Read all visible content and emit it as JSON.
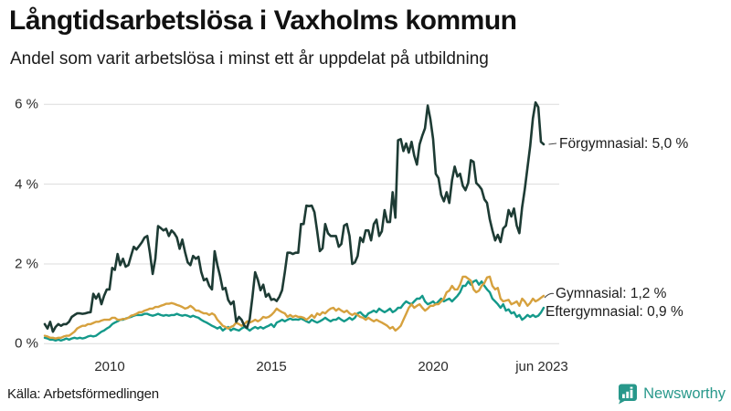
{
  "header": {
    "title": "Långtidsarbetslösa i Vaxholms kommun",
    "subtitle": "Andel som varit arbetslösa i minst ett år uppdelat på utbildning"
  },
  "footer": {
    "source": "Källa: Arbetsförmedlingen",
    "brand": "Newsworthy"
  },
  "colors": {
    "forgymnasial": "#1d3b34",
    "gymnasial": "#d6a13e",
    "eftergymnasial": "#14998a",
    "grid": "#dcdcdc",
    "brand_teal": "#28988b",
    "text": "#1c1c1c"
  },
  "chart_data": {
    "type": "line",
    "title": "Långtidsarbetslösa i Vaxholms kommun",
    "subtitle": "Andel som varit arbetslösa i minst ett år uppdelat på utbildning",
    "x_unit": "month",
    "x_start": "2008-01",
    "x_end": "2023-06",
    "ylim": [
      0,
      6
    ],
    "grid": "horizontal",
    "legend_position": "right-end-of-line",
    "y_ticks": [
      {
        "label": "6 %",
        "value": 6
      },
      {
        "label": "4 %",
        "value": 4
      },
      {
        "label": "2 %",
        "value": 2
      },
      {
        "label": "0 %",
        "value": 0
      }
    ],
    "x_ticks": [
      {
        "label": "2010",
        "month_index": 24
      },
      {
        "label": "2015",
        "month_index": 84
      },
      {
        "label": "2020",
        "month_index": 144
      },
      {
        "label": "jun 2023",
        "month_index": 185
      }
    ],
    "series": [
      {
        "name": "Förgymnasial",
        "label": "Förgymnasial: 5,0 %",
        "end_value": "5,0 %",
        "color": "#1d3b34",
        "values": [
          0.49,
          0.38,
          0.55,
          0.3,
          0.42,
          0.49,
          0.45,
          0.49,
          0.49,
          0.55,
          0.67,
          0.72,
          0.76,
          0.76,
          0.75,
          0.76,
          0.78,
          0.79,
          1.25,
          1.13,
          1.25,
          0.99,
          1.2,
          1.36,
          1.36,
          1.9,
          1.85,
          2.25,
          1.97,
          2.13,
          1.93,
          1.97,
          2.2,
          2.43,
          2.36,
          2.45,
          2.54,
          2.66,
          2.7,
          2.27,
          1.75,
          2.13,
          2.95,
          2.9,
          2.84,
          2.88,
          2.7,
          2.84,
          2.77,
          2.66,
          2.38,
          2.61,
          2.3,
          2.04,
          1.97,
          2.2,
          2.13,
          2.18,
          1.8,
          1.59,
          1.63,
          1.45,
          1.36,
          2.32,
          1.97,
          1.7,
          1.36,
          1.4,
          1.1,
          0.99,
          1.06,
          0.55,
          0.67,
          0.6,
          0.45,
          0.4,
          0.62,
          1.18,
          1.79,
          1.6,
          1.34,
          1.48,
          1.18,
          1.25,
          1.1,
          1.12,
          1.07,
          1.18,
          1.34,
          1.79,
          2.28,
          2.28,
          2.25,
          2.28,
          2.28,
          3.0,
          3.0,
          3.46,
          3.45,
          3.46,
          3.3,
          2.82,
          2.32,
          2.39,
          3.0,
          2.77,
          2.7,
          2.7,
          2.7,
          2.43,
          2.5,
          2.96,
          3.0,
          2.7,
          2.0,
          2.04,
          2.2,
          2.66,
          2.55,
          2.84,
          2.84,
          2.59,
          3.0,
          3.11,
          2.7,
          2.82,
          3.35,
          3.05,
          3.05,
          3.8,
          3.16,
          5.1,
          5.13,
          4.83,
          5.02,
          4.79,
          5.06,
          4.72,
          4.49,
          5.0,
          5.22,
          5.4,
          5.97,
          5.63,
          5.13,
          4.26,
          4.15,
          3.73,
          3.57,
          3.8,
          3.53,
          4.1,
          4.44,
          4.19,
          4.26,
          3.96,
          3.85,
          4.03,
          4.6,
          4.56,
          4.03,
          3.96,
          3.87,
          3.62,
          3.53,
          3.12,
          2.84,
          2.59,
          2.73,
          2.55,
          2.89,
          2.96,
          3.35,
          3.19,
          3.39,
          2.96,
          2.77,
          3.42,
          3.87,
          4.42,
          4.95,
          5.65,
          6.05,
          5.93,
          5.06,
          5.0
        ]
      },
      {
        "name": "Gymnasial",
        "label": "Gymnasial: 1,2 %",
        "end_value": "1,2 %",
        "color": "#d6a13e",
        "values": [
          0.2,
          0.18,
          0.15,
          0.15,
          0.13,
          0.15,
          0.15,
          0.18,
          0.2,
          0.2,
          0.25,
          0.3,
          0.38,
          0.42,
          0.45,
          0.45,
          0.49,
          0.49,
          0.52,
          0.55,
          0.55,
          0.58,
          0.6,
          0.6,
          0.6,
          0.65,
          0.65,
          0.6,
          0.6,
          0.62,
          0.62,
          0.65,
          0.7,
          0.72,
          0.75,
          0.79,
          0.79,
          0.83,
          0.85,
          0.88,
          0.88,
          0.92,
          0.92,
          0.95,
          0.97,
          1.0,
          1.0,
          1.02,
          1.0,
          0.97,
          0.95,
          0.92,
          0.88,
          0.9,
          0.95,
          0.9,
          0.83,
          0.83,
          0.79,
          0.76,
          0.76,
          0.72,
          0.76,
          0.72,
          0.6,
          0.53,
          0.45,
          0.42,
          0.38,
          0.42,
          0.45,
          0.53,
          0.49,
          0.45,
          0.49,
          0.56,
          0.53,
          0.56,
          0.6,
          0.56,
          0.6,
          0.67,
          0.65,
          0.67,
          0.72,
          0.79,
          0.88,
          0.83,
          0.79,
          0.76,
          0.67,
          0.72,
          0.67,
          0.7,
          0.67,
          0.67,
          0.65,
          0.6,
          0.65,
          0.72,
          0.65,
          0.76,
          0.72,
          0.79,
          0.76,
          0.83,
          0.88,
          0.9,
          0.83,
          0.88,
          0.83,
          0.79,
          0.83,
          0.76,
          0.72,
          0.76,
          0.72,
          0.67,
          0.65,
          0.6,
          0.65,
          0.6,
          0.56,
          0.6,
          0.56,
          0.53,
          0.49,
          0.45,
          0.38,
          0.42,
          0.33,
          0.38,
          0.45,
          0.6,
          0.75,
          0.9,
          0.99,
          0.9,
          0.95,
          0.99,
          0.9,
          0.83,
          0.88,
          0.95,
          0.95,
          0.99,
          0.99,
          1.06,
          1.13,
          1.29,
          1.33,
          1.45,
          1.36,
          1.36,
          1.48,
          1.68,
          1.68,
          1.63,
          1.58,
          1.36,
          1.29,
          1.33,
          1.45,
          1.52,
          1.66,
          1.68,
          1.45,
          1.36,
          1.4,
          1.13,
          1.06,
          1.08,
          1.1,
          0.99,
          1.02,
          1.06,
          0.95,
          1.13,
          1.06,
          0.95,
          1.02,
          1.13,
          1.06,
          1.1,
          1.15,
          1.2
        ]
      },
      {
        "name": "Eftergymnasial",
        "label": "Eftergymnasial: 0,9 %",
        "end_value": "0,9 %",
        "color": "#14998a",
        "values": [
          0.15,
          0.13,
          0.1,
          0.1,
          0.08,
          0.1,
          0.08,
          0.1,
          0.13,
          0.1,
          0.13,
          0.15,
          0.13,
          0.15,
          0.13,
          0.15,
          0.18,
          0.2,
          0.18,
          0.2,
          0.25,
          0.3,
          0.33,
          0.38,
          0.42,
          0.49,
          0.53,
          0.56,
          0.6,
          0.6,
          0.63,
          0.65,
          0.67,
          0.7,
          0.72,
          0.72,
          0.72,
          0.75,
          0.75,
          0.72,
          0.7,
          0.72,
          0.75,
          0.72,
          0.7,
          0.72,
          0.7,
          0.72,
          0.72,
          0.75,
          0.72,
          0.7,
          0.72,
          0.7,
          0.67,
          0.7,
          0.67,
          0.65,
          0.6,
          0.56,
          0.53,
          0.49,
          0.45,
          0.42,
          0.38,
          0.42,
          0.33,
          0.38,
          0.42,
          0.33,
          0.38,
          0.35,
          0.33,
          0.38,
          0.42,
          0.38,
          0.33,
          0.38,
          0.42,
          0.38,
          0.42,
          0.38,
          0.42,
          0.45,
          0.49,
          0.42,
          0.53,
          0.56,
          0.6,
          0.56,
          0.6,
          0.63,
          0.6,
          0.61,
          0.6,
          0.63,
          0.6,
          0.56,
          0.53,
          0.6,
          0.56,
          0.53,
          0.56,
          0.6,
          0.65,
          0.6,
          0.56,
          0.6,
          0.6,
          0.65,
          0.6,
          0.56,
          0.6,
          0.65,
          0.6,
          0.65,
          0.76,
          0.79,
          0.72,
          0.67,
          0.76,
          0.79,
          0.83,
          0.79,
          0.88,
          0.83,
          0.79,
          0.83,
          0.88,
          0.79,
          0.83,
          0.9,
          0.9,
          0.99,
          1.06,
          1.02,
          0.99,
          1.06,
          1.13,
          1.13,
          1.2,
          1.06,
          0.99,
          1.02,
          1.06,
          0.99,
          1.06,
          1.13,
          1.06,
          1.1,
          1.13,
          1.06,
          1.13,
          1.2,
          1.29,
          1.45,
          1.45,
          1.56,
          1.48,
          1.56,
          1.59,
          1.48,
          1.56,
          1.45,
          1.36,
          1.29,
          1.13,
          1.06,
          0.99,
          0.9,
          0.99,
          0.83,
          0.86,
          0.76,
          0.79,
          0.67,
          0.72,
          0.6,
          0.65,
          0.72,
          0.67,
          0.72,
          0.67,
          0.7,
          0.78,
          0.9
        ]
      }
    ]
  }
}
